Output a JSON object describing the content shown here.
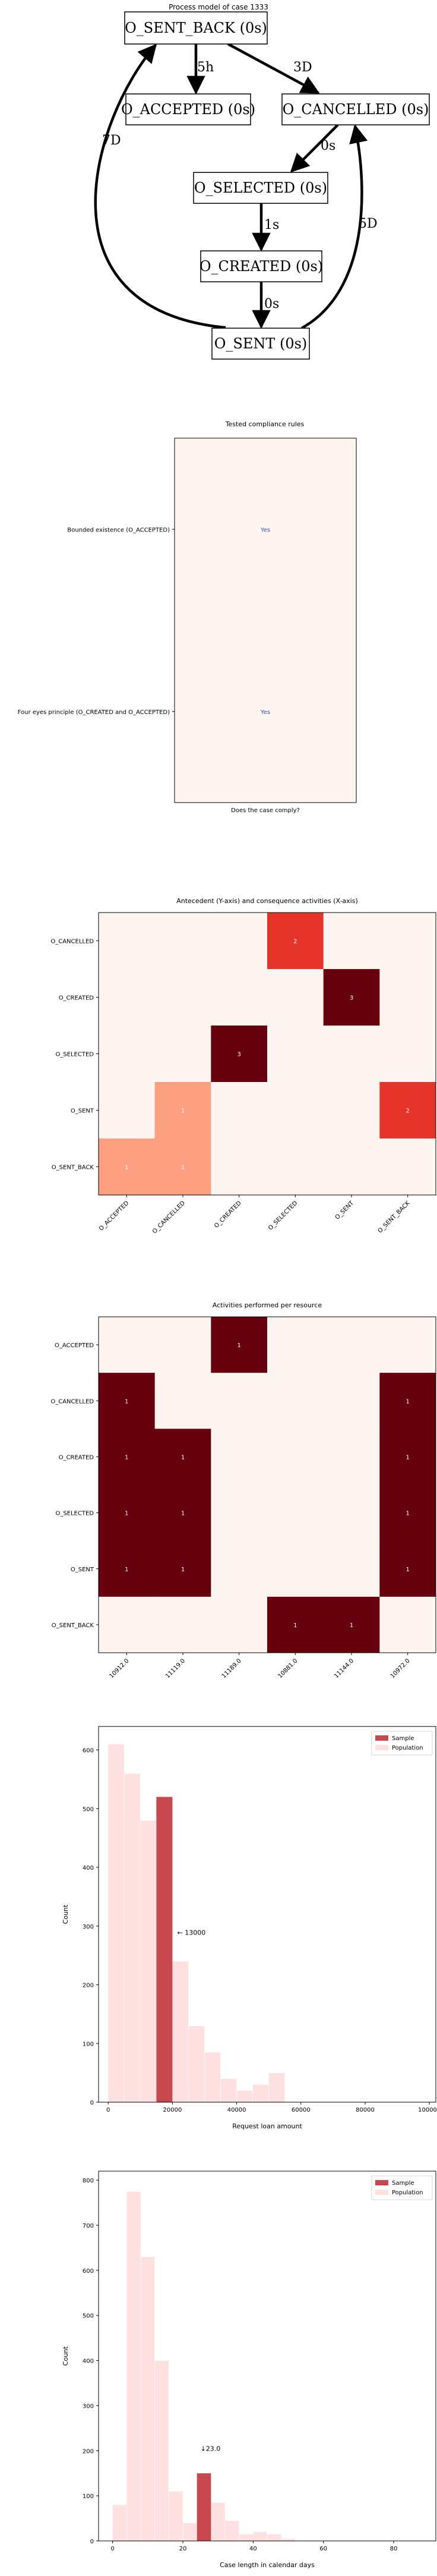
{
  "process_model": {
    "title": "Process model of case 1333",
    "nodes": [
      {
        "id": "sent_back",
        "label": "O_SENT_BACK (0s)"
      },
      {
        "id": "accepted",
        "label": "O_ACCEPTED (0s)"
      },
      {
        "id": "cancelled",
        "label": "O_CANCELLED (0s)"
      },
      {
        "id": "selected",
        "label": "O_SELECTED (0s)"
      },
      {
        "id": "created",
        "label": "O_CREATED (0s)"
      },
      {
        "id": "sent",
        "label": "O_SENT (0s)"
      }
    ],
    "edges": [
      {
        "from": "sent_back",
        "to": "accepted",
        "label": "5h"
      },
      {
        "from": "sent_back",
        "to": "cancelled",
        "label": "3D"
      },
      {
        "from": "cancelled",
        "to": "selected",
        "label": "0s"
      },
      {
        "from": "selected",
        "to": "created",
        "label": "1s"
      },
      {
        "from": "created",
        "to": "sent",
        "label": "0s"
      },
      {
        "from": "sent",
        "to": "sent_back",
        "label": "7D"
      },
      {
        "from": "sent",
        "to": "cancelled",
        "label": "5D"
      }
    ]
  },
  "chart_data": [
    {
      "type": "table",
      "title": "Tested compliance rules",
      "xlabel": "Does the case comply?",
      "rows": [
        "Bounded existence (O_ACCEPTED)",
        "Four eyes principle (O_CREATED and O_ACCEPTED)"
      ],
      "values": [
        "Yes",
        "Yes"
      ]
    },
    {
      "type": "heatmap",
      "title": "Antecedent (Y-axis) and consequence activities (X-axis)",
      "x": [
        "O_ACCEPTED",
        "O_CANCELLED",
        "O_CREATED",
        "O_SELECTED",
        "O_SENT",
        "O_SENT_BACK"
      ],
      "y": [
        "O_CANCELLED",
        "O_CREATED",
        "O_SELECTED",
        "O_SENT",
        "O_SENT_BACK"
      ],
      "values": [
        [
          0,
          0,
          0,
          2,
          0,
          0
        ],
        [
          0,
          0,
          0,
          0,
          3,
          0
        ],
        [
          0,
          0,
          3,
          0,
          0,
          0
        ],
        [
          0,
          1,
          0,
          0,
          0,
          2
        ],
        [
          1,
          1,
          0,
          0,
          0,
          0
        ]
      ],
      "vmax": 3
    },
    {
      "type": "heatmap",
      "title": "Activities performed per resource",
      "x": [
        "10912.0",
        "11119.0",
        "11189.0",
        "10881.0",
        "11144.0",
        "10972.0"
      ],
      "y": [
        "O_ACCEPTED",
        "O_CANCELLED",
        "O_CREATED",
        "O_SELECTED",
        "O_SENT",
        "O_SENT_BACK"
      ],
      "values": [
        [
          0,
          0,
          1,
          0,
          0,
          0
        ],
        [
          1,
          0,
          0,
          0,
          0,
          1
        ],
        [
          1,
          1,
          0,
          0,
          0,
          1
        ],
        [
          1,
          1,
          0,
          0,
          0,
          1
        ],
        [
          1,
          1,
          0,
          0,
          0,
          1
        ],
        [
          0,
          0,
          0,
          1,
          1,
          0
        ]
      ],
      "vmax": 1
    },
    {
      "type": "bar",
      "subtype": "histogram",
      "xlabel": "Request loan amount",
      "ylabel": "Count",
      "xlim": [
        -3000,
        102000
      ],
      "ylim": [
        0,
        640
      ],
      "xticks": [
        0,
        20000,
        40000,
        60000,
        80000,
        100000
      ],
      "yticks": [
        0,
        100,
        200,
        300,
        400,
        500,
        600
      ],
      "bin_width": 5000,
      "population": {
        "name": "Population",
        "bin_starts": [
          0,
          5000,
          10000,
          15000,
          20000,
          25000,
          30000,
          35000,
          40000,
          45000,
          50000
        ],
        "values": [
          610,
          560,
          480,
          520,
          240,
          130,
          85,
          40,
          20,
          30,
          50
        ]
      },
      "sample": {
        "name": "Sample",
        "bin_start": 15000,
        "value": 520
      },
      "annotation": "← 13000",
      "annotation_x": 21500,
      "annotation_y": 285,
      "legend": "top-right"
    },
    {
      "type": "bar",
      "subtype": "histogram",
      "xlabel": "Case length in calendar days",
      "ylabel": "Count",
      "xlim": [
        -4,
        92
      ],
      "ylim": [
        0,
        820
      ],
      "xticks": [
        0,
        20,
        40,
        60,
        80
      ],
      "yticks": [
        0,
        100,
        200,
        300,
        400,
        500,
        600,
        700,
        800
      ],
      "bin_width": 4,
      "population": {
        "name": "Population",
        "bin_starts": [
          0,
          4,
          8,
          12,
          16,
          20,
          24,
          28,
          32,
          36,
          40,
          44,
          48
        ],
        "values": [
          80,
          775,
          630,
          400,
          110,
          40,
          150,
          85,
          45,
          15,
          20,
          15,
          5
        ]
      },
      "sample": {
        "name": "Sample",
        "bin_start": 24,
        "value": 150
      },
      "annotation": "↓23.0",
      "annotation_x": 25,
      "annotation_y": 200,
      "legend": "top-right"
    }
  ],
  "colors": {
    "heat_low": "#fff5f0",
    "heat_mid": "#fb6a4a",
    "heat_high": "#67000d",
    "population": "#fee0e0",
    "sample": "#c9484f",
    "table_bg": "#fff5f0",
    "yes_text": "#3b4cc0"
  }
}
